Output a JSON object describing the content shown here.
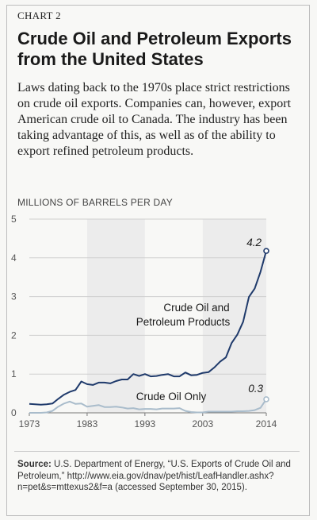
{
  "chart_label": "CHART 2",
  "title": "Crude Oil and Petroleum Exports from the United States",
  "description": "Laws dating back to the 1970s place strict restrictions on crude oil exports. Companies can, however, export American crude oil to Canada. The industry has been taking advantage of this, as well as of the ability to export refined petroleum products.",
  "source": {
    "label": "Source:",
    "text": "U.S. Department of Energy, “U.S. Exports of Crude Oil and Petroleum,” http://www.eia.gov/dnav/pet/hist/LeafHandler.ashx?n=pet&s=mttexus2&f=a (accessed September 30, 2015)."
  },
  "colors": {
    "petroleum": "#1f3a6b",
    "crude": "#a9bccb",
    "band": "#ececec"
  },
  "chart_data": {
    "type": "line",
    "ylabel": "MILLIONS OF BARRELS PER DAY",
    "xlim": [
      1973,
      2014
    ],
    "ylim": [
      0,
      5
    ],
    "y_ticks": [
      "0",
      "1",
      "2",
      "3",
      "4",
      "5"
    ],
    "x_ticks": [
      {
        "value": 1973,
        "label": "1973"
      },
      {
        "value": 1983,
        "label": "1983"
      },
      {
        "value": 1993,
        "label": "1993"
      },
      {
        "value": 2003,
        "label": "2003"
      },
      {
        "value": 2014,
        "label": "2014"
      }
    ],
    "shaded_bands": [
      [
        1983,
        1993
      ],
      [
        2003,
        2014
      ]
    ],
    "series": [
      {
        "name": "Crude Oil and Petroleum Products",
        "end_label": "4.2",
        "x": [
          1973,
          1974,
          1975,
          1976,
          1977,
          1978,
          1979,
          1980,
          1981,
          1982,
          1983,
          1984,
          1985,
          1986,
          1987,
          1988,
          1989,
          1990,
          1991,
          1992,
          1993,
          1994,
          1995,
          1996,
          1997,
          1998,
          1999,
          2000,
          2001,
          2002,
          2003,
          2004,
          2005,
          2006,
          2007,
          2008,
          2009,
          2010,
          2011,
          2012,
          2013,
          2014
        ],
        "y": [
          0.23,
          0.22,
          0.21,
          0.22,
          0.24,
          0.36,
          0.47,
          0.54,
          0.59,
          0.81,
          0.74,
          0.72,
          0.78,
          0.78,
          0.76,
          0.82,
          0.86,
          0.86,
          1.0,
          0.95,
          1.0,
          0.94,
          0.95,
          0.98,
          1.0,
          0.94,
          0.94,
          1.04,
          0.97,
          0.98,
          1.03,
          1.05,
          1.17,
          1.32,
          1.43,
          1.8,
          2.02,
          2.35,
          2.99,
          3.21,
          3.64,
          4.18
        ]
      },
      {
        "name": "Crude Oil Only",
        "end_label": "0.3",
        "x": [
          1973,
          1974,
          1975,
          1976,
          1977,
          1978,
          1979,
          1980,
          1981,
          1982,
          1983,
          1984,
          1985,
          1986,
          1987,
          1988,
          1989,
          1990,
          1991,
          1992,
          1993,
          1994,
          1995,
          1996,
          1997,
          1998,
          1999,
          2000,
          2001,
          2002,
          2003,
          2004,
          2005,
          2006,
          2007,
          2008,
          2009,
          2010,
          2011,
          2012,
          2013,
          2014
        ],
        "y": [
          0.0,
          0.0,
          0.0,
          0.01,
          0.05,
          0.16,
          0.24,
          0.29,
          0.23,
          0.24,
          0.16,
          0.18,
          0.2,
          0.15,
          0.15,
          0.16,
          0.14,
          0.11,
          0.12,
          0.09,
          0.1,
          0.1,
          0.09,
          0.11,
          0.11,
          0.11,
          0.12,
          0.05,
          0.02,
          0.01,
          0.01,
          0.03,
          0.03,
          0.03,
          0.03,
          0.03,
          0.04,
          0.04,
          0.05,
          0.07,
          0.13,
          0.35
        ]
      }
    ]
  }
}
